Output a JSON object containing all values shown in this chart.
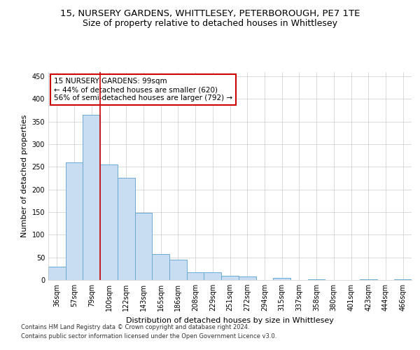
{
  "title_line1": "15, NURSERY GARDENS, WHITTLESEY, PETERBOROUGH, PE7 1TE",
  "title_line2": "Size of property relative to detached houses in Whittlesey",
  "xlabel": "Distribution of detached houses by size in Whittlesey",
  "ylabel": "Number of detached properties",
  "categories": [
    "36sqm",
    "57sqm",
    "79sqm",
    "100sqm",
    "122sqm",
    "143sqm",
    "165sqm",
    "186sqm",
    "208sqm",
    "229sqm",
    "251sqm",
    "272sqm",
    "294sqm",
    "315sqm",
    "337sqm",
    "358sqm",
    "380sqm",
    "401sqm",
    "423sqm",
    "444sqm",
    "466sqm"
  ],
  "values": [
    30,
    260,
    365,
    255,
    225,
    148,
    57,
    45,
    17,
    17,
    10,
    7,
    0,
    5,
    0,
    2,
    0,
    0,
    2,
    0,
    2
  ],
  "bar_color": "#c8ddf2",
  "bar_edge_color": "#6aaad4",
  "subject_bar_index": 2,
  "annotation_text": "15 NURSERY GARDENS: 99sqm\n← 44% of detached houses are smaller (620)\n56% of semi-detached houses are larger (792) →",
  "annotation_box_color": "#ffffff",
  "annotation_box_edge_color": "#cc0000",
  "ylim": [
    0,
    460
  ],
  "yticks": [
    0,
    50,
    100,
    150,
    200,
    250,
    300,
    350,
    400,
    450
  ],
  "background_color": "#ffffff",
  "grid_color": "#cccccc",
  "footer_line1": "Contains HM Land Registry data © Crown copyright and database right 2024.",
  "footer_line2": "Contains public sector information licensed under the Open Government Licence v3.0.",
  "title_fontsize": 9.5,
  "subtitle_fontsize": 9,
  "axis_label_fontsize": 8,
  "tick_fontsize": 7,
  "bar_width": 1.0
}
